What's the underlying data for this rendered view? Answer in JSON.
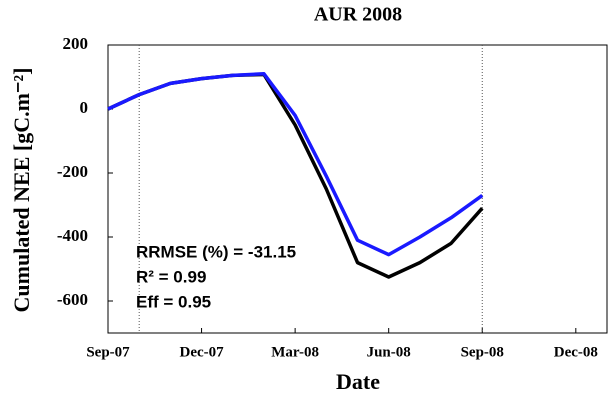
{
  "chart_data": {
    "type": "line",
    "title": "AUR 2008",
    "xlabel": "Date",
    "ylabel": "Cumulated NEE [gC.m⁻²]",
    "x": [
      "2007-09",
      "2007-10",
      "2007-11",
      "2007-12",
      "2008-01",
      "2008-02",
      "2008-03",
      "2008-04",
      "2008-05",
      "2008-06",
      "2008-07",
      "2008-08",
      "2008-09"
    ],
    "series": [
      {
        "color": "#000000",
        "values": [
          0,
          45,
          80,
          95,
          105,
          108,
          -50,
          -250,
          -480,
          -525,
          -480,
          -420,
          -310
        ]
      },
      {
        "color": "#1a1aff",
        "values": [
          0,
          45,
          80,
          95,
          105,
          110,
          -20,
          -210,
          -410,
          -455,
          -400,
          -340,
          -270
        ]
      }
    ],
    "xlim": [
      "2007-09",
      "2009-01"
    ],
    "xticks": [
      {
        "value": "2007-09",
        "label": "Sep-07"
      },
      {
        "value": "2007-12",
        "label": "Dec-07"
      },
      {
        "value": "2008-03",
        "label": "Mar-08"
      },
      {
        "value": "2008-06",
        "label": "Jun-08"
      },
      {
        "value": "2008-09",
        "label": "Sep-08"
      },
      {
        "value": "2008-12",
        "label": "Dec-08"
      }
    ],
    "ylim": [
      -700,
      200
    ],
    "yticks": [
      200,
      0,
      -200,
      -400,
      -600
    ],
    "vlines": [
      "2007-10",
      "2008-09"
    ],
    "annotations": [
      "RRMSE (%) = -31.15",
      "R² = 0.99",
      "Eff = 0.95"
    ]
  }
}
